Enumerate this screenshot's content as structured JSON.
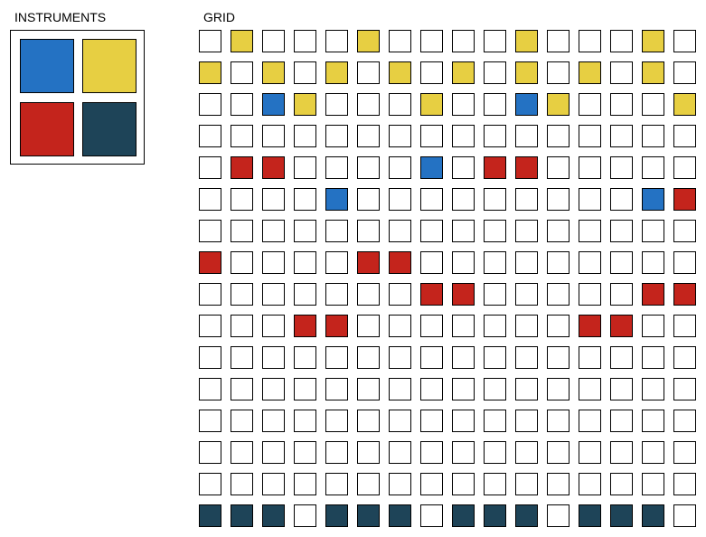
{
  "labels": {
    "instruments": "INSTRUMENTS",
    "grid": "GRID"
  },
  "colors": {
    "empty": "#ffffff",
    "border": "#000000"
  },
  "instruments": [
    {
      "id": "blue",
      "color": "#2472c3"
    },
    {
      "id": "yellow",
      "color": "#e7cf42"
    },
    {
      "id": "red",
      "color": "#c4241c"
    },
    {
      "id": "navy",
      "color": "#1e4458"
    }
  ],
  "grid": {
    "rows": 16,
    "cols": 16,
    "legend": {
      "B": "blue",
      "Y": "yellow",
      "R": "red",
      "N": "navy",
      ".": "empty"
    },
    "cells": [
      ".Y...Y....Y...Y.",
      "Y.Y.Y.Y.Y.Y.Y.Y.",
      "..BY...Y..BY...Y",
      "................",
      ".RR....B.RR.....",
      "....B.........BR",
      "................",
      "R....RR.........",
      ".......RR.....RR",
      "...RR.......RR..",
      "................",
      "................",
      "................",
      "................",
      "................",
      "NNN.NNN.NNN.NNN."
    ]
  }
}
